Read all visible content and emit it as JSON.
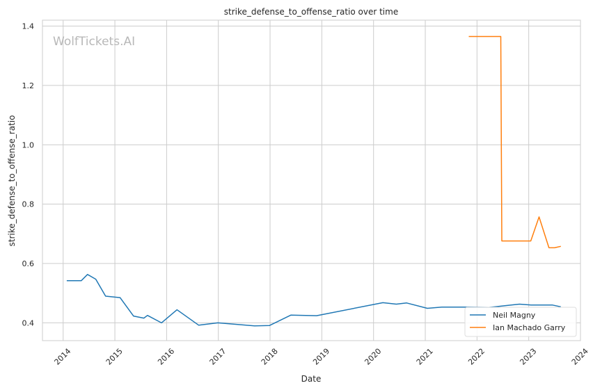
{
  "chart_data": {
    "type": "line",
    "title": "strike_defense_to_offense_ratio over time",
    "xlabel": "Date",
    "ylabel": "strike_defense_to_offense_ratio",
    "watermark": "WolfTickets.AI",
    "xlim": [
      2013.6,
      2024.0
    ],
    "ylim": [
      0.34,
      1.42
    ],
    "x_ticks": [
      2014,
      2015,
      2016,
      2017,
      2018,
      2019,
      2020,
      2021,
      2022,
      2023,
      2024
    ],
    "x_tick_labels": [
      "2014",
      "2015",
      "2016",
      "2017",
      "2018",
      "2019",
      "2020",
      "2021",
      "2022",
      "2023",
      "2024"
    ],
    "y_ticks": [
      0.4,
      0.6,
      0.8,
      1.0,
      1.2,
      1.4
    ],
    "y_tick_labels": [
      "0.4",
      "0.6",
      "0.8",
      "1.0",
      "1.2",
      "1.4"
    ],
    "grid": true,
    "legend_position": "bottom-right",
    "series": [
      {
        "name": "Neil Magny",
        "color": "#1f77b4",
        "x": [
          2014.07,
          2014.35,
          2014.47,
          2014.63,
          2014.82,
          2015.1,
          2015.36,
          2015.56,
          2015.63,
          2015.9,
          2016.2,
          2016.62,
          2016.99,
          2017.7,
          2017.99,
          2018.4,
          2018.9,
          2020.18,
          2020.44,
          2020.64,
          2021.04,
          2021.32,
          2021.82,
          2022.23,
          2022.6,
          2022.82,
          2023.05,
          2023.46,
          2023.62
        ],
        "y": [
          0.542,
          0.542,
          0.563,
          0.547,
          0.49,
          0.485,
          0.423,
          0.416,
          0.425,
          0.4,
          0.444,
          0.392,
          0.4,
          0.39,
          0.391,
          0.426,
          0.424,
          0.468,
          0.463,
          0.467,
          0.449,
          0.453,
          0.453,
          0.452,
          0.459,
          0.463,
          0.46,
          0.46,
          0.454
        ]
      },
      {
        "name": "Ian Machado Garry",
        "color": "#ff7f0e",
        "x": [
          2021.84,
          2022.46,
          2022.48,
          2022.99,
          2023.04,
          2023.2,
          2023.39,
          2023.5,
          2023.62
        ],
        "y": [
          1.365,
          1.365,
          0.676,
          0.676,
          0.676,
          0.757,
          0.653,
          0.653,
          0.658
        ]
      }
    ]
  }
}
